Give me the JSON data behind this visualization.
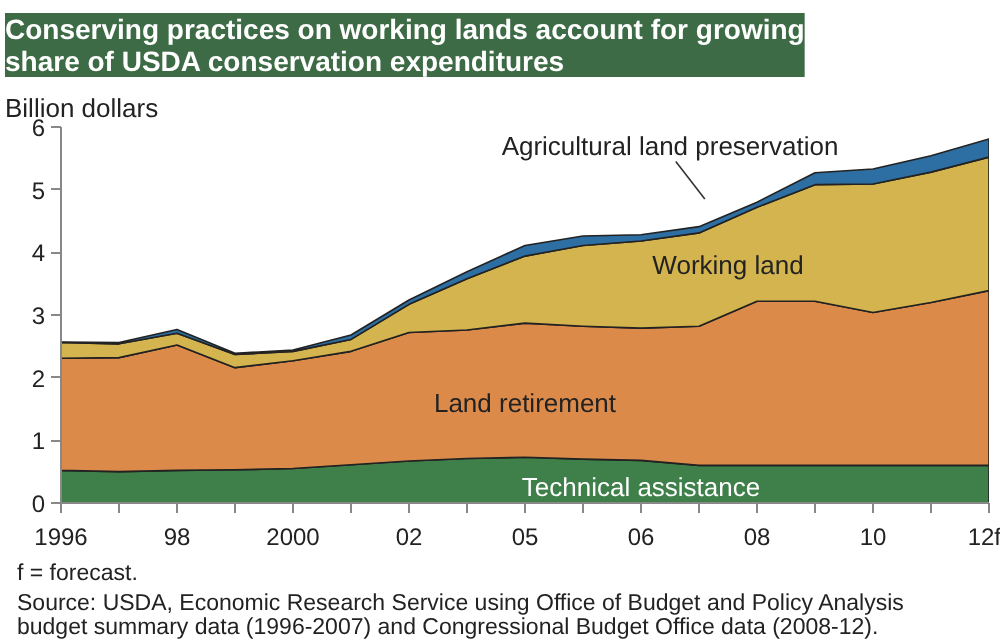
{
  "chart_data": {
    "type": "area",
    "stacked": true,
    "title": "Conserving practices on working lands account for growing share of USDA conservation expenditures",
    "ylabel": "Billion dollars",
    "categories": [
      "1996",
      null,
      "98",
      null,
      "2000",
      null,
      "02",
      null,
      "05",
      null,
      "06",
      null,
      "08",
      null,
      "10",
      null,
      "12f"
    ],
    "ylim": [
      0,
      6
    ],
    "yticks": [
      0,
      1,
      2,
      3,
      4,
      5,
      6
    ],
    "grid": false,
    "series": [
      {
        "name": "Technical assistance",
        "color": "#3f7f4a",
        "values": [
          0.52,
          0.5,
          0.52,
          0.53,
          0.55,
          0.61,
          0.67,
          0.71,
          0.73,
          0.7,
          0.68,
          0.6,
          0.6,
          0.6,
          0.6,
          0.6,
          0.6
        ]
      },
      {
        "name": "Land retirement",
        "color": "#dc8a4a",
        "values": [
          1.79,
          1.82,
          2.0,
          1.63,
          1.72,
          1.81,
          2.05,
          2.05,
          2.14,
          2.12,
          2.11,
          2.22,
          2.62,
          2.62,
          2.44,
          2.6,
          2.79
        ]
      },
      {
        "name": "Working land",
        "color": "#d4b44f",
        "values": [
          0.25,
          0.22,
          0.19,
          0.21,
          0.15,
          0.19,
          0.45,
          0.82,
          1.07,
          1.29,
          1.39,
          1.49,
          1.5,
          1.86,
          2.05,
          2.08,
          2.13
        ]
      },
      {
        "name": "Agricultural land preservation",
        "color": "#2d6fa3",
        "values": [
          0.01,
          0.02,
          0.06,
          0.02,
          0.02,
          0.07,
          0.07,
          0.11,
          0.17,
          0.15,
          0.1,
          0.1,
          0.08,
          0.19,
          0.24,
          0.26,
          0.29
        ]
      }
    ],
    "annotations": [
      "f = forecast.",
      "Source: USDA, Economic Research Service using Office of Budget and Policy Analysis budget summary data (1996-2007) and Congressional Budget Office data (2008-12)."
    ]
  }
}
